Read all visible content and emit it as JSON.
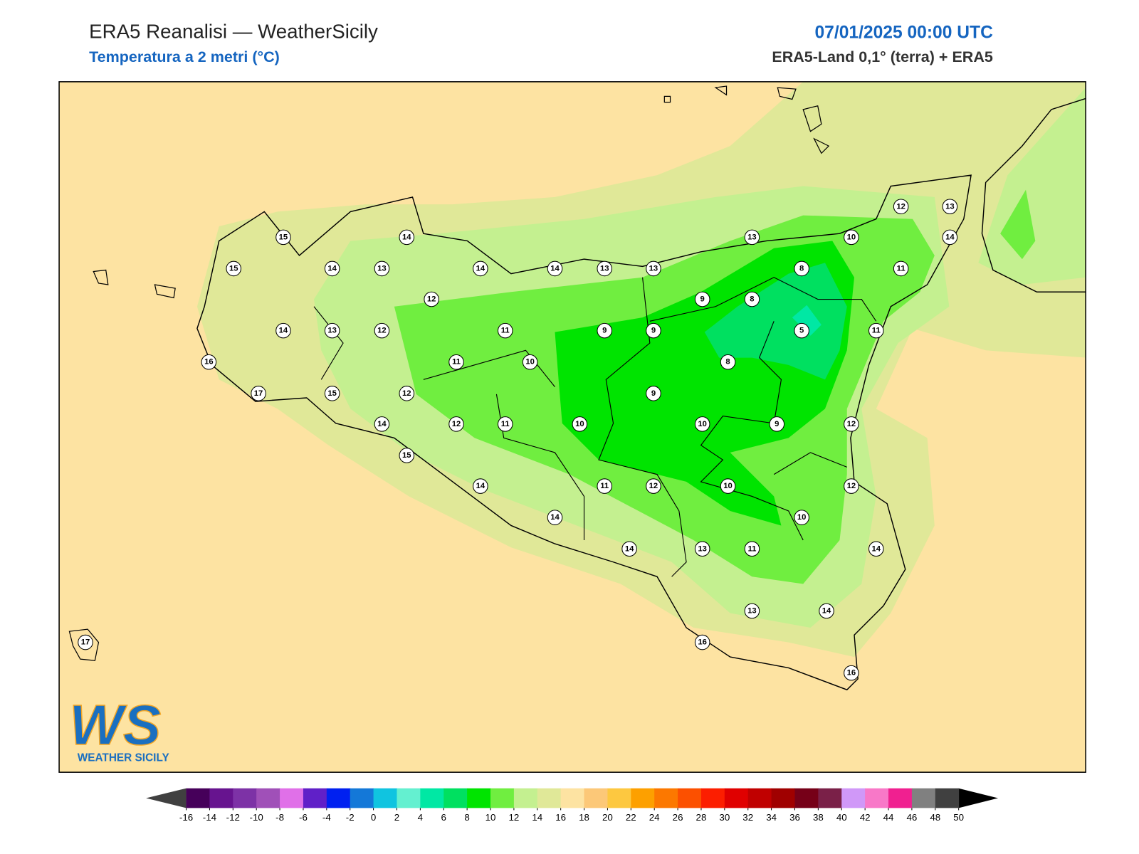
{
  "header": {
    "title": "ERA5 Reanalisi — WeatherSicily",
    "subtitle": "Temperatura a 2 metri (°C)",
    "datetime": "07/01/2025 00:00 UTC",
    "source": "ERA5-Land 0,1° (terra) + ERA5"
  },
  "map": {
    "station_values": [
      15,
      14,
      13,
      10,
      12,
      13,
      14,
      15,
      14,
      13,
      14,
      14,
      13,
      13,
      8,
      11,
      12,
      9,
      8,
      14,
      13,
      12,
      11,
      9,
      9,
      5,
      11,
      16,
      11,
      10,
      8,
      17,
      15,
      12,
      9,
      14,
      12,
      11,
      10,
      10,
      9,
      12,
      15,
      14,
      11,
      12,
      10,
      12,
      14,
      10,
      14,
      13,
      11,
      14,
      13,
      14,
      17,
      16,
      16
    ]
  },
  "logo": {
    "mark": "WS",
    "name": "WEATHER SICILY"
  },
  "colorbar": {
    "ticks": [
      -16,
      -14,
      -12,
      -10,
      -8,
      -6,
      -4,
      -2,
      0,
      2,
      4,
      6,
      8,
      10,
      12,
      14,
      16,
      18,
      20,
      22,
      24,
      26,
      28,
      30,
      32,
      34,
      36,
      38,
      40,
      42,
      44,
      46,
      48,
      50
    ],
    "colors": [
      "#46005a",
      "#67148f",
      "#7d32a6",
      "#a050b8",
      "#e070e8",
      "#6020c8",
      "#0020f0",
      "#1478d8",
      "#10c4e0",
      "#64f0d0",
      "#00e8a4",
      "#00e060",
      "#00e400",
      "#70ee40",
      "#c4f090",
      "#e0e898",
      "#fde3a2",
      "#fcc878",
      "#fdc840",
      "#fda000",
      "#fc7800",
      "#fc5000",
      "#fc1e00",
      "#e00000",
      "#c00000",
      "#a00000",
      "#760018",
      "#7a2048",
      "#d098f8",
      "#f878c8",
      "#f02090",
      "#808080",
      "#404040"
    ]
  }
}
